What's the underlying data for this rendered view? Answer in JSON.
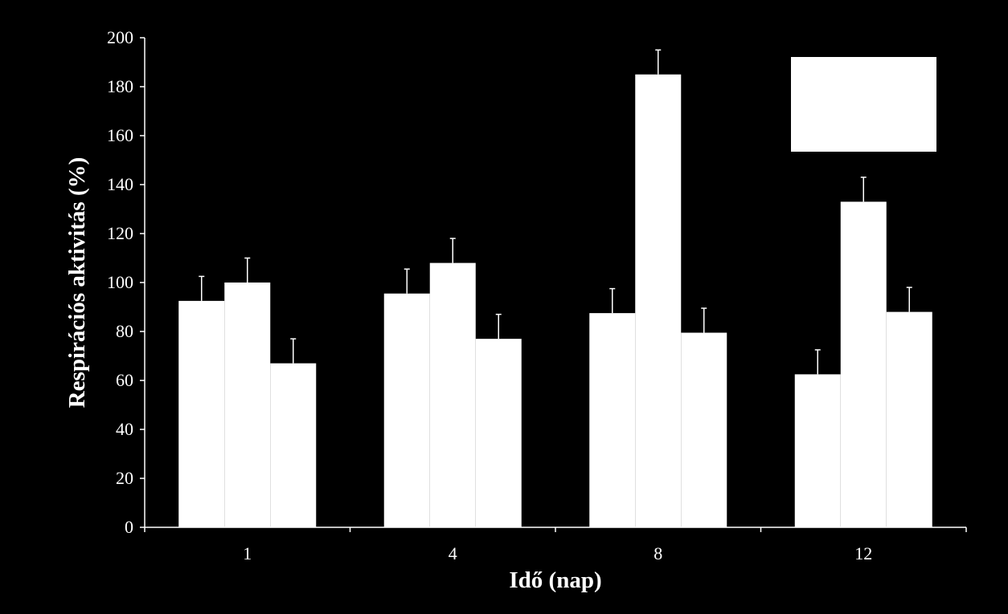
{
  "colors": {
    "background": "#000000",
    "bar": "#ffffff",
    "axis": "#ffffff",
    "text": "#ffffff"
  },
  "chart_data": {
    "type": "bar",
    "title": "",
    "xlabel": "Idő (nap)",
    "ylabel": "Respirációs aktivitás (%)",
    "categories": [
      "1",
      "4",
      "8",
      "12"
    ],
    "series": [
      {
        "values": [
          92.5,
          95.5,
          87.5,
          62.5
        ],
        "errors": [
          10,
          10,
          10,
          10
        ]
      },
      {
        "values": [
          100,
          108,
          185,
          133
        ],
        "errors": [
          10,
          10,
          10,
          10
        ]
      },
      {
        "values": [
          67,
          77,
          79.5,
          88
        ],
        "errors": [
          10,
          10,
          10,
          10
        ]
      }
    ],
    "ylim": [
      0,
      200
    ],
    "yticks": [
      0,
      20,
      40,
      60,
      80,
      100,
      120,
      140,
      160,
      180,
      200
    ],
    "grid": false,
    "legend": {
      "position": "top-right",
      "entries": []
    }
  }
}
